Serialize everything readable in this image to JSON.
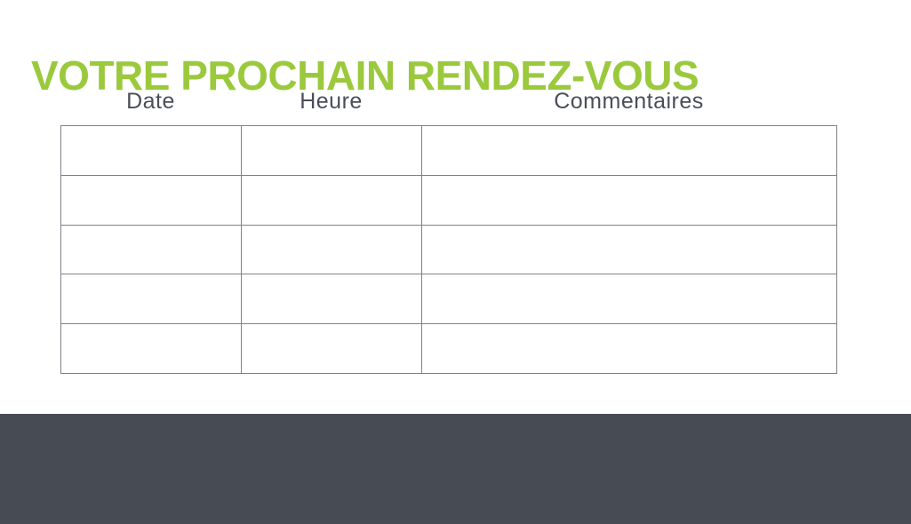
{
  "page": {
    "title": "VOTRE PROCHAIN RENDEZ-VOUS"
  },
  "colors": {
    "title_green": "#9bc93d",
    "header_text": "#4a4e58",
    "table_border": "#7e8288",
    "footer_band": "#474b54",
    "background": "#ffffff"
  },
  "table": {
    "columns": [
      {
        "key": "date",
        "label": "Date"
      },
      {
        "key": "heure",
        "label": "Heure"
      },
      {
        "key": "commentaires",
        "label": "Commentaires"
      }
    ],
    "rows": [
      {
        "cells": [
          "",
          "",
          ""
        ]
      },
      {
        "cells": [
          "",
          "",
          ""
        ]
      },
      {
        "cells": [
          "",
          "",
          ""
        ]
      },
      {
        "cells": [
          "",
          "",
          ""
        ]
      },
      {
        "cells": [
          "",
          "",
          ""
        ]
      }
    ]
  }
}
